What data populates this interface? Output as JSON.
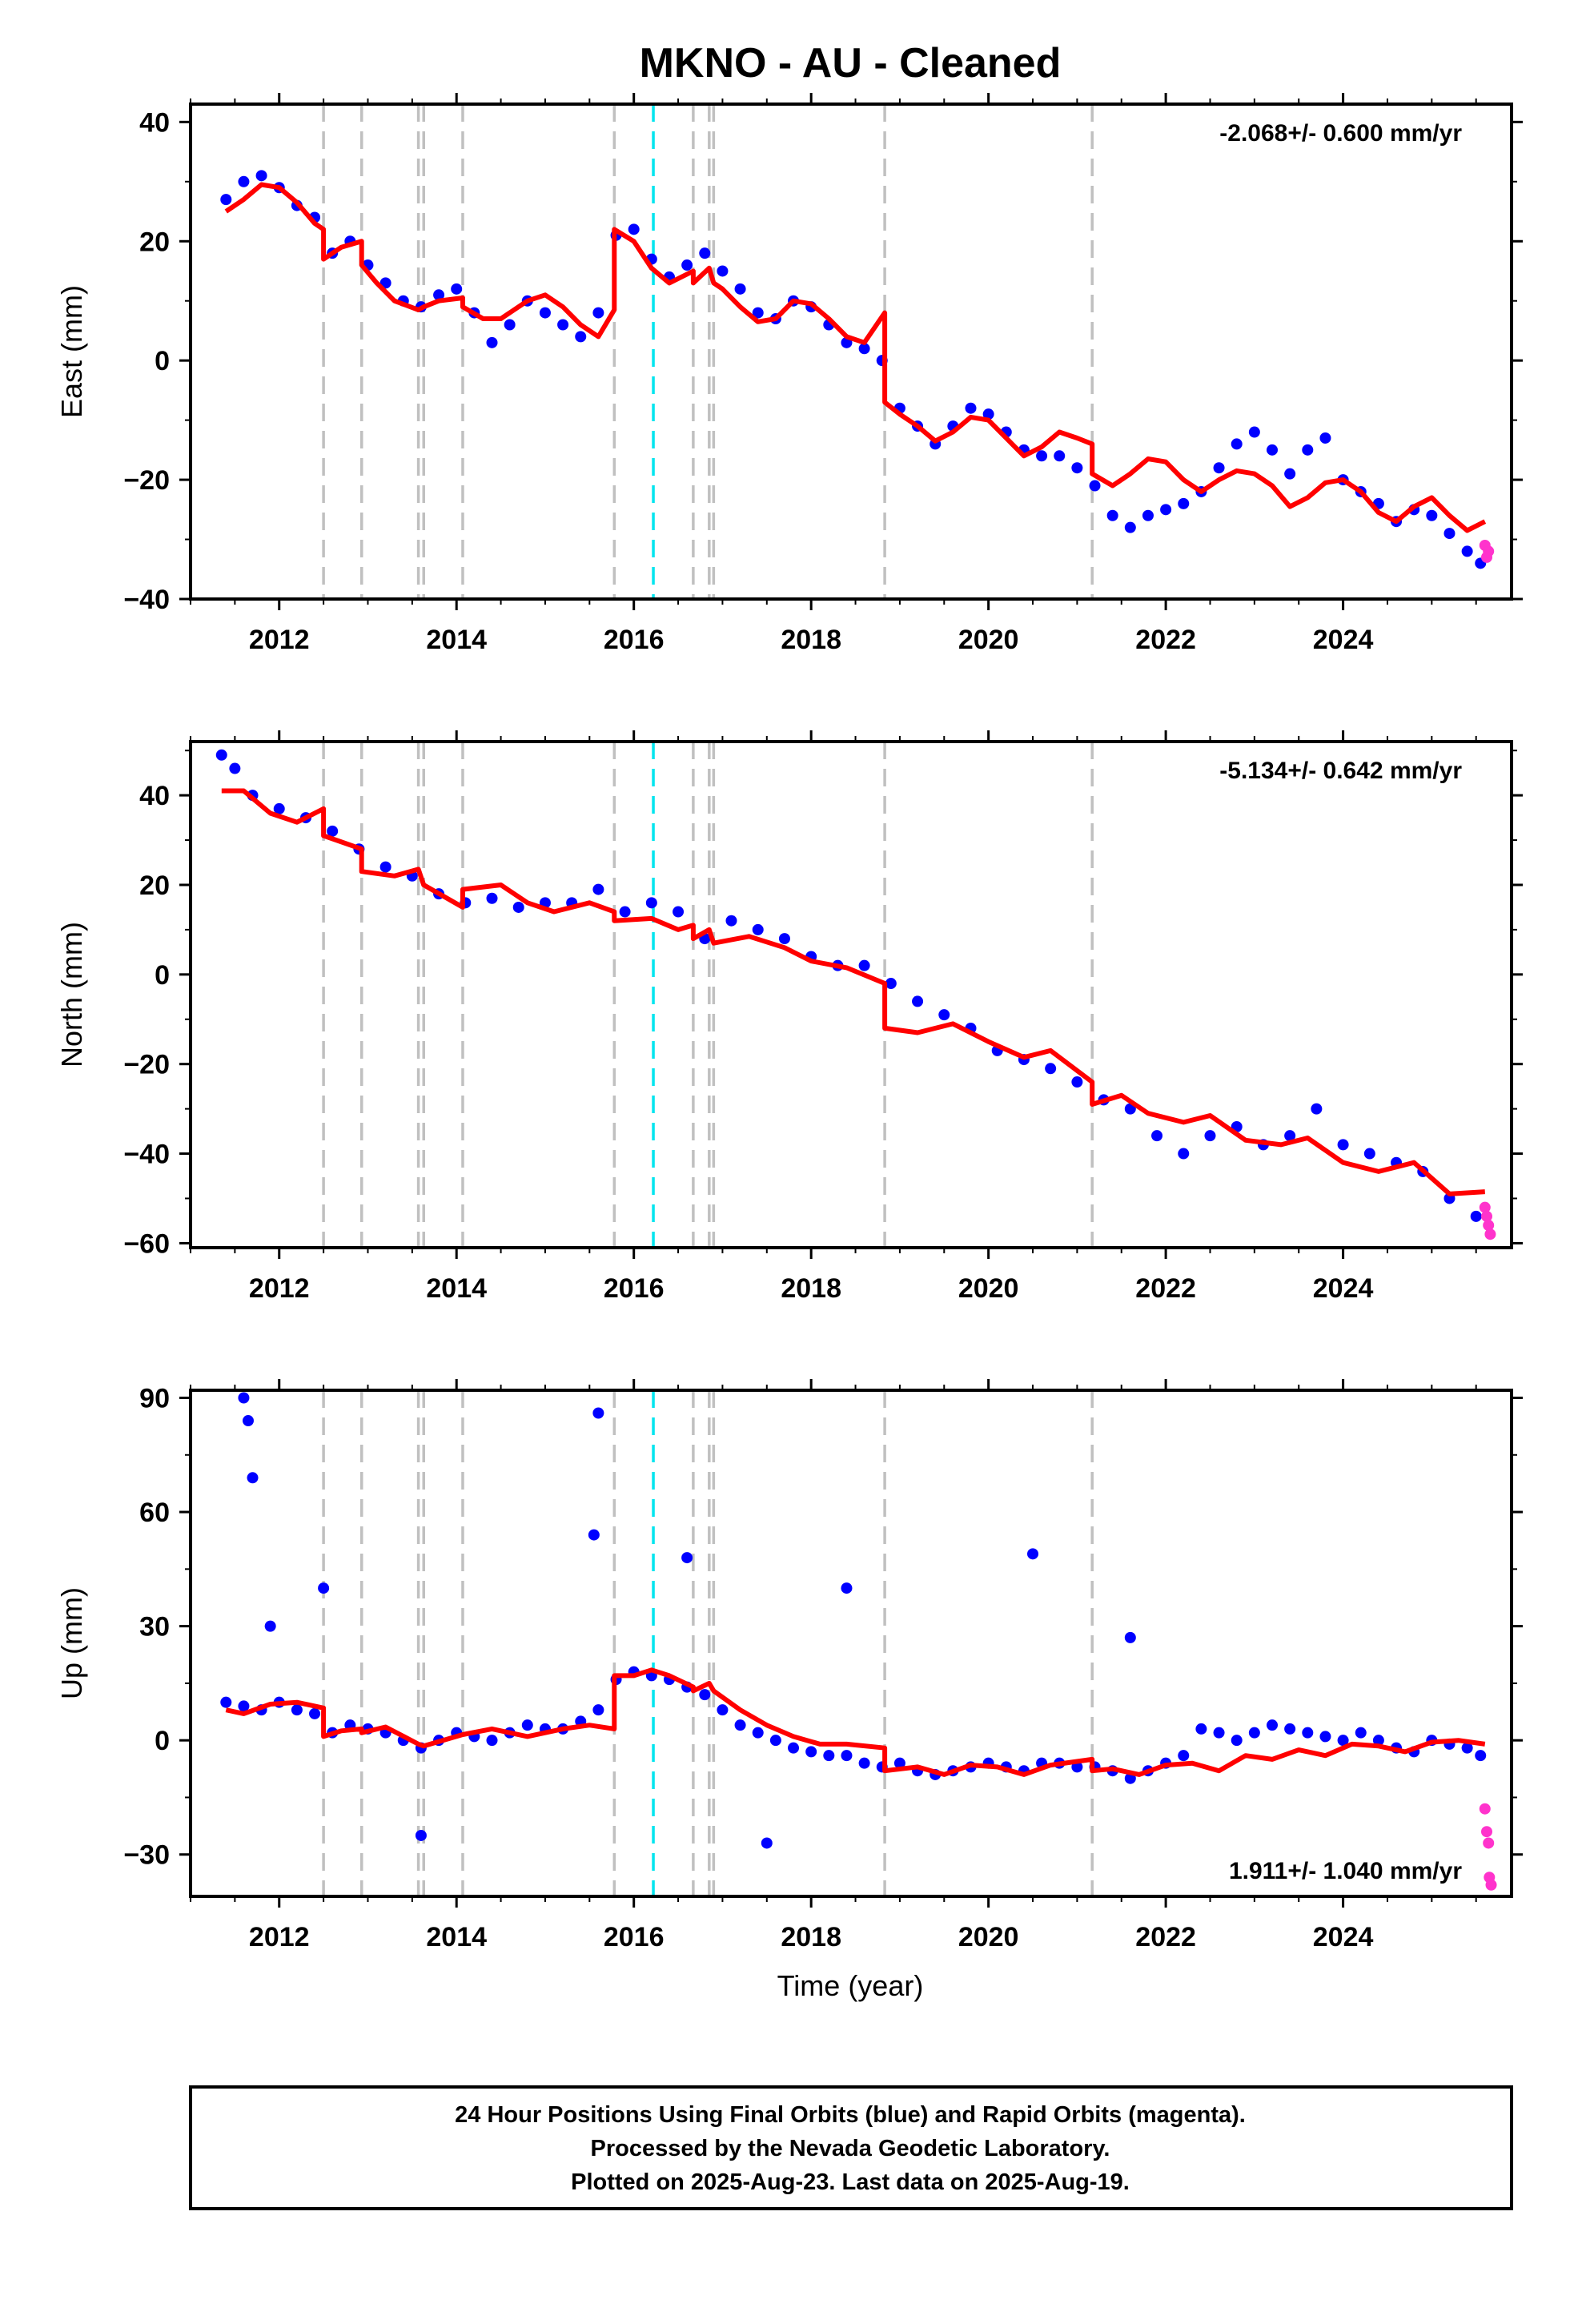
{
  "title": "MKNO  - AU - Cleaned",
  "xlabel": "Time (year)",
  "xticks": [
    "2012",
    "2014",
    "2016",
    "2018",
    "2020",
    "2022",
    "2024"
  ],
  "footer": {
    "line1": "24 Hour Positions Using Final Orbits (blue) and Rapid Orbits (magenta).",
    "line2": "Processed by the Nevada Geodetic Laboratory.",
    "line3": "Plotted on 2025-Aug-23. Last data on 2025-Aug-19."
  },
  "colors": {
    "final": "#0000ff",
    "rapid": "#ff33cc",
    "model": "#ff0000",
    "steps": "#c0c0c0",
    "equipment": "#00e5ee"
  },
  "chart_data": [
    {
      "type": "scatter",
      "ylabel": "East (mm)",
      "rate": "-2.068+/- 0.600 mm/yr",
      "xlim": [
        2011.0,
        2025.9
      ],
      "ylim": [
        -40,
        43
      ],
      "yticks": [
        40,
        20,
        0,
        -20,
        -40
      ],
      "step_lines": [
        2012.5,
        2012.93,
        2013.57,
        2013.63,
        2014.07,
        2015.78,
        2016.67,
        2016.85,
        2016.9,
        2018.83,
        2021.17
      ],
      "cyan_lines": [
        2016.22
      ],
      "final_series": {
        "x": [
          2011.4,
          2011.6,
          2011.8,
          2012.0,
          2012.2,
          2012.4,
          2012.6,
          2012.8,
          2013.0,
          2013.2,
          2013.4,
          2013.6,
          2013.8,
          2014.0,
          2014.2,
          2014.4,
          2014.6,
          2014.8,
          2015.0,
          2015.2,
          2015.4,
          2015.6,
          2015.8,
          2016.0,
          2016.2,
          2016.4,
          2016.6,
          2016.8,
          2017.0,
          2017.2,
          2017.4,
          2017.6,
          2017.8,
          2018.0,
          2018.2,
          2018.4,
          2018.6,
          2018.8,
          2019.0,
          2019.2,
          2019.4,
          2019.6,
          2019.8,
          2020.0,
          2020.2,
          2020.4,
          2020.6,
          2020.8,
          2021.0,
          2021.2,
          2021.4,
          2021.6,
          2021.8,
          2022.0,
          2022.2,
          2022.4,
          2022.6,
          2022.8,
          2023.0,
          2023.2,
          2023.4,
          2023.6,
          2023.8,
          2024.0,
          2024.2,
          2024.4,
          2024.6,
          2024.8,
          2025.0,
          2025.2,
          2025.4,
          2025.55
        ],
        "y": [
          27,
          30,
          31,
          29,
          26,
          24,
          18,
          20,
          16,
          13,
          10,
          9,
          11,
          12,
          8,
          3,
          6,
          10,
          8,
          6,
          4,
          8,
          21,
          22,
          17,
          14,
          16,
          18,
          15,
          12,
          8,
          7,
          10,
          9,
          6,
          3,
          2,
          0,
          -8,
          -11,
          -14,
          -11,
          -8,
          -9,
          -12,
          -15,
          -16,
          -16,
          -18,
          -21,
          -26,
          -28,
          -26,
          -25,
          -24,
          -22,
          -18,
          -14,
          -12,
          -15,
          -19,
          -15,
          -13,
          -20,
          -22,
          -24,
          -27,
          -25,
          -26,
          -29,
          -32,
          -34
        ]
      },
      "rapid_series": {
        "x": [
          2025.6,
          2025.62,
          2025.64
        ],
        "y": [
          -31,
          -33,
          -32
        ]
      },
      "model_series": {
        "x": [
          2011.4,
          2011.6,
          2011.8,
          2012.0,
          2012.2,
          2012.4,
          2012.5,
          2012.5,
          2012.7,
          2012.93,
          2012.93,
          2013.1,
          2013.3,
          2013.57,
          2013.63,
          2013.8,
          2014.07,
          2014.07,
          2014.3,
          2014.5,
          2014.8,
          2015.0,
          2015.2,
          2015.4,
          2015.6,
          2015.78,
          2015.78,
          2016.0,
          2016.2,
          2016.4,
          2016.67,
          2016.67,
          2016.85,
          2016.9,
          2017.0,
          2017.2,
          2017.4,
          2017.6,
          2017.8,
          2018.0,
          2018.2,
          2018.4,
          2018.6,
          2018.83,
          2018.83,
          2019.0,
          2019.2,
          2019.4,
          2019.6,
          2019.8,
          2020.0,
          2020.2,
          2020.4,
          2020.6,
          2020.8,
          2021.0,
          2021.17,
          2021.17,
          2021.4,
          2021.6,
          2021.8,
          2022.0,
          2022.2,
          2022.4,
          2022.6,
          2022.8,
          2023.0,
          2023.2,
          2023.4,
          2023.6,
          2023.8,
          2024.0,
          2024.2,
          2024.4,
          2024.6,
          2024.8,
          2025.0,
          2025.2,
          2025.4,
          2025.6
        ],
        "y": [
          25,
          27,
          29.5,
          29,
          26.5,
          23,
          22,
          17,
          19,
          20,
          16,
          13,
          10,
          8.5,
          9,
          10,
          10.5,
          9,
          7,
          7,
          10,
          11,
          9,
          6,
          4,
          8.5,
          22,
          20,
          15.5,
          13,
          15,
          13,
          15.5,
          13,
          12,
          9,
          6.5,
          7,
          10,
          9.5,
          7,
          4,
          3,
          8,
          -7,
          -9,
          -11,
          -13.5,
          -12,
          -9.5,
          -10,
          -13,
          -16,
          -14.5,
          -12,
          -13,
          -14,
          -19,
          -21,
          -19,
          -16.5,
          -17,
          -20,
          -22,
          -20,
          -18.5,
          -19,
          -21,
          -24.5,
          -23,
          -20.5,
          -20,
          -22,
          -25.5,
          -27,
          -24.5,
          -23,
          -26,
          -28.5,
          -27
        ]
      }
    },
    {
      "type": "scatter",
      "ylabel": "North (mm)",
      "rate": "-5.134+/- 0.642 mm/yr",
      "xlim": [
        2011.0,
        2025.9
      ],
      "ylim": [
        -61,
        52
      ],
      "yticks": [
        40,
        20,
        0,
        -20,
        -40,
        -60
      ],
      "step_lines": [
        2012.5,
        2012.93,
        2013.57,
        2013.63,
        2014.07,
        2015.78,
        2016.67,
        2016.85,
        2016.9,
        2018.83,
        2021.17
      ],
      "cyan_lines": [
        2016.22
      ],
      "final_series": {
        "x": [
          2011.35,
          2011.5,
          2011.7,
          2012.0,
          2012.3,
          2012.6,
          2012.9,
          2013.2,
          2013.5,
          2013.8,
          2014.1,
          2014.4,
          2014.7,
          2015.0,
          2015.3,
          2015.6,
          2015.9,
          2016.2,
          2016.5,
          2016.8,
          2017.1,
          2017.4,
          2017.7,
          2018.0,
          2018.3,
          2018.6,
          2018.9,
          2019.2,
          2019.5,
          2019.8,
          2020.1,
          2020.4,
          2020.7,
          2021.0,
          2021.3,
          2021.6,
          2021.9,
          2022.2,
          2022.5,
          2022.8,
          2023.1,
          2023.4,
          2023.7,
          2024.0,
          2024.3,
          2024.6,
          2024.9,
          2025.2,
          2025.5
        ],
        "y": [
          49,
          46,
          40,
          37,
          35,
          32,
          28,
          24,
          22,
          18,
          16,
          17,
          15,
          16,
          16,
          19,
          14,
          16,
          14,
          8,
          12,
          10,
          8,
          4,
          2,
          2,
          -2,
          -6,
          -9,
          -12,
          -17,
          -19,
          -21,
          -24,
          -28,
          -30,
          -36,
          -40,
          -36,
          -34,
          -38,
          -36,
          -30,
          -38,
          -40,
          -42,
          -44,
          -50,
          -54
        ]
      },
      "rapid_series": {
        "x": [
          2025.6,
          2025.62,
          2025.64,
          2025.66
        ],
        "y": [
          -52,
          -54,
          -56,
          -58
        ]
      },
      "model_series": {
        "x": [
          2011.35,
          2011.6,
          2011.9,
          2012.2,
          2012.5,
          2012.5,
          2012.93,
          2012.93,
          2013.3,
          2013.57,
          2013.63,
          2014.07,
          2014.07,
          2014.5,
          2014.8,
          2015.1,
          2015.5,
          2015.78,
          2015.78,
          2016.2,
          2016.5,
          2016.67,
          2016.67,
          2016.85,
          2016.9,
          2017.3,
          2017.7,
          2018.0,
          2018.4,
          2018.83,
          2018.83,
          2019.2,
          2019.6,
          2020.0,
          2020.4,
          2020.7,
          2021.17,
          2021.17,
          2021.5,
          2021.8,
          2022.2,
          2022.5,
          2022.9,
          2023.3,
          2023.6,
          2024.0,
          2024.4,
          2024.8,
          2025.2,
          2025.6
        ],
        "y": [
          41,
          41,
          36,
          34,
          37,
          31,
          28,
          23,
          22,
          23.5,
          20,
          15,
          19,
          20,
          16,
          14,
          16,
          14,
          12,
          12.5,
          10,
          11,
          8,
          10,
          7,
          8.5,
          6,
          3,
          1.5,
          -2,
          -12,
          -13,
          -11,
          -15,
          -18.5,
          -17,
          -24,
          -29,
          -27,
          -31,
          -33,
          -31.5,
          -37,
          -38,
          -36.5,
          -42,
          -44,
          -42,
          -49,
          -48.5
        ]
      }
    },
    {
      "type": "scatter",
      "ylabel": "Up (mm)",
      "rate": "1.911+/- 1.040 mm/yr",
      "xlim": [
        2011.0,
        2025.9
      ],
      "ylim": [
        -41,
        92
      ],
      "yticks": [
        90,
        60,
        30,
        0,
        -30
      ],
      "step_lines": [
        2012.5,
        2012.93,
        2013.57,
        2013.63,
        2014.07,
        2015.78,
        2016.67,
        2016.85,
        2016.9,
        2018.83,
        2021.17
      ],
      "cyan_lines": [
        2016.22
      ],
      "final_series": {
        "x": [
          2011.4,
          2011.6,
          2011.8,
          2012.0,
          2012.2,
          2012.4,
          2012.6,
          2012.8,
          2013.0,
          2013.2,
          2013.4,
          2013.6,
          2013.8,
          2014.0,
          2014.2,
          2014.4,
          2014.6,
          2014.8,
          2015.0,
          2015.2,
          2015.4,
          2015.6,
          2015.8,
          2016.0,
          2016.2,
          2016.4,
          2016.6,
          2016.8,
          2017.0,
          2017.2,
          2017.4,
          2017.6,
          2017.8,
          2018.0,
          2018.2,
          2018.4,
          2018.6,
          2018.8,
          2019.0,
          2019.2,
          2019.4,
          2019.6,
          2019.8,
          2020.0,
          2020.2,
          2020.4,
          2020.6,
          2020.8,
          2021.0,
          2021.2,
          2021.4,
          2021.6,
          2021.8,
          2022.0,
          2022.2,
          2022.4,
          2022.6,
          2022.8,
          2023.0,
          2023.2,
          2023.4,
          2023.6,
          2023.8,
          2024.0,
          2024.2,
          2024.4,
          2024.6,
          2024.8,
          2025.0,
          2025.2,
          2025.4,
          2025.55,
          2011.6,
          2011.65,
          2011.7,
          2015.6,
          2015.55,
          2016.6,
          2020.5,
          2018.4,
          2011.9,
          2012.5,
          2017.5,
          2013.6,
          2021.6
        ],
        "y": [
          10,
          9,
          8,
          10,
          8,
          7,
          2,
          4,
          3,
          2,
          0,
          -2,
          0,
          2,
          1,
          0,
          2,
          4,
          3,
          3,
          5,
          8,
          16,
          18,
          17,
          16,
          14,
          12,
          8,
          4,
          2,
          0,
          -2,
          -3,
          -4,
          -4,
          -6,
          -7,
          -6,
          -8,
          -9,
          -8,
          -7,
          -6,
          -7,
          -8,
          -6,
          -6,
          -7,
          -7,
          -8,
          -10,
          -8,
          -6,
          -4,
          3,
          2,
          0,
          2,
          4,
          3,
          2,
          1,
          0,
          2,
          0,
          -2,
          -3,
          0,
          -1,
          -2,
          -4,
          90,
          84,
          69,
          86,
          54,
          48,
          49,
          40,
          30,
          40,
          -27,
          -25,
          27
        ]
      },
      "rapid_series": {
        "x": [
          2025.6,
          2025.62,
          2025.64,
          2025.65,
          2025.67
        ],
        "y": [
          -18,
          -24,
          -27,
          -36,
          -38
        ]
      },
      "model_series": {
        "x": [
          2011.4,
          2011.6,
          2011.9,
          2012.2,
          2012.5,
          2012.5,
          2012.7,
          2012.93,
          2012.93,
          2013.2,
          2013.57,
          2013.63,
          2014.07,
          2014.07,
          2014.4,
          2014.8,
          2015.2,
          2015.5,
          2015.78,
          2015.78,
          2016.0,
          2016.2,
          2016.4,
          2016.67,
          2016.67,
          2016.85,
          2016.9,
          2017.2,
          2017.5,
          2017.8,
          2018.1,
          2018.4,
          2018.83,
          2018.83,
          2019.2,
          2019.5,
          2019.8,
          2020.1,
          2020.4,
          2020.7,
          2021.17,
          2021.17,
          2021.4,
          2021.7,
          2022.0,
          2022.3,
          2022.6,
          2022.9,
          2023.2,
          2023.5,
          2023.8,
          2024.1,
          2024.4,
          2024.7,
          2025.0,
          2025.3,
          2025.6
        ],
        "y": [
          8,
          7,
          9.5,
          10,
          8.5,
          1,
          2.5,
          3,
          2,
          3.5,
          -1,
          -1.5,
          1.5,
          1.5,
          3,
          1,
          3,
          4,
          3,
          17,
          17,
          18.5,
          17,
          14,
          13,
          15,
          13,
          8,
          4,
          1,
          -1,
          -1,
          -2,
          -8,
          -7,
          -9,
          -6.5,
          -7,
          -9,
          -6.5,
          -5,
          -8,
          -7.5,
          -9,
          -6.5,
          -6,
          -8,
          -4,
          -5,
          -2.5,
          -4,
          -1,
          -1.5,
          -3,
          -0.5,
          0,
          -1
        ]
      }
    }
  ]
}
